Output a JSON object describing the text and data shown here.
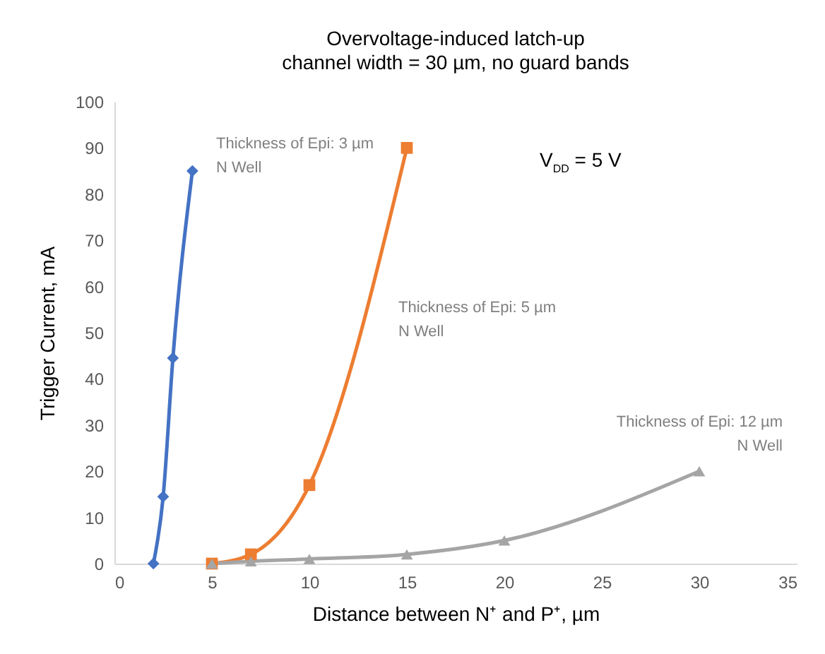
{
  "chart_data": {
    "type": "line",
    "title": "Overvoltage-induced latch-up",
    "subtitle": "channel width = 30 µm, no guard bands",
    "xlabel": "Distance between N⁺ and P⁺, µm",
    "ylabel": "Trigger Current, mA",
    "xlim": [
      0,
      35
    ],
    "xticks": [
      0,
      5,
      10,
      15,
      20,
      25,
      30,
      35
    ],
    "ylim": [
      0,
      100
    ],
    "yticks": [
      0,
      10,
      20,
      30,
      40,
      50,
      60,
      70,
      80,
      90,
      100
    ],
    "grid": false,
    "legend": false,
    "series": [
      {
        "color": "#4472c4",
        "marker": "diamond",
        "x": [
          2,
          2.5,
          3,
          4
        ],
        "values": [
          0,
          14.5,
          44.5,
          85
        ]
      },
      {
        "color": "#ed7d31",
        "marker": "square",
        "x": [
          5,
          7,
          10,
          15
        ],
        "values": [
          0,
          2,
          17,
          90
        ]
      },
      {
        "color": "#a5a5a5",
        "marker": "triangle",
        "x": [
          5,
          7,
          10,
          15,
          20,
          30
        ],
        "values": [
          0,
          0.5,
          1,
          2,
          5,
          20
        ]
      }
    ],
    "annotations": [
      "Thickness of Epi: 3 µm\nN Well",
      "Thickness of Epi: 5 µm\nN Well",
      "Thickness of Epi: 12 µm\nN Well",
      "V$_{DD}$ = 5 V"
    ]
  }
}
